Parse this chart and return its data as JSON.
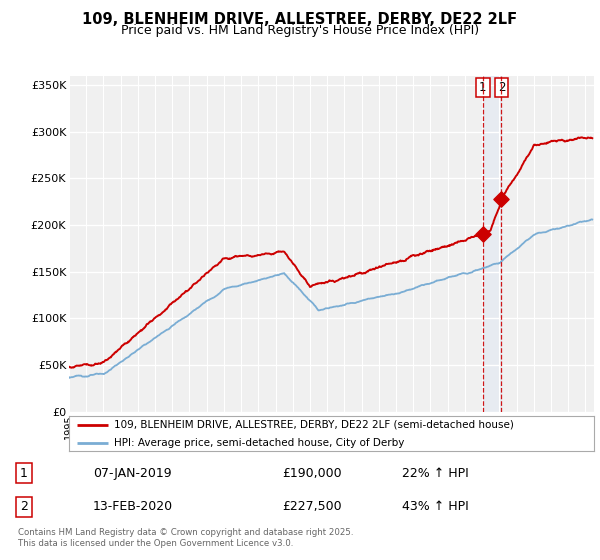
{
  "title": "109, BLENHEIM DRIVE, ALLESTREE, DERBY, DE22 2LF",
  "subtitle": "Price paid vs. HM Land Registry's House Price Index (HPI)",
  "ylabel_ticks": [
    "£0",
    "£50K",
    "£100K",
    "£150K",
    "£200K",
    "£250K",
    "£300K",
    "£350K"
  ],
  "ytick_values": [
    0,
    50000,
    100000,
    150000,
    200000,
    250000,
    300000,
    350000
  ],
  "ylim": [
    0,
    360000
  ],
  "xlim_start": 1995.0,
  "xlim_end": 2025.5,
  "sale1_date": 2019.04,
  "sale1_price": 190000,
  "sale2_date": 2020.12,
  "sale2_price": 227500,
  "line_color_red": "#cc0000",
  "line_color_blue": "#7aadd4",
  "vline_color": "#cc0000",
  "background_color": "#f0f0f0",
  "grid_color": "#ffffff",
  "legend1": "109, BLENHEIM DRIVE, ALLESTREE, DERBY, DE22 2LF (semi-detached house)",
  "legend2": "HPI: Average price, semi-detached house, City of Derby",
  "table_row1": [
    "1",
    "07-JAN-2019",
    "£190,000",
    "22% ↑ HPI"
  ],
  "table_row2": [
    "2",
    "13-FEB-2020",
    "£227,500",
    "43% ↑ HPI"
  ],
  "footnote": "Contains HM Land Registry data © Crown copyright and database right 2025.\nThis data is licensed under the Open Government Licence v3.0.",
  "title_fontsize": 10.5,
  "subtitle_fontsize": 9
}
